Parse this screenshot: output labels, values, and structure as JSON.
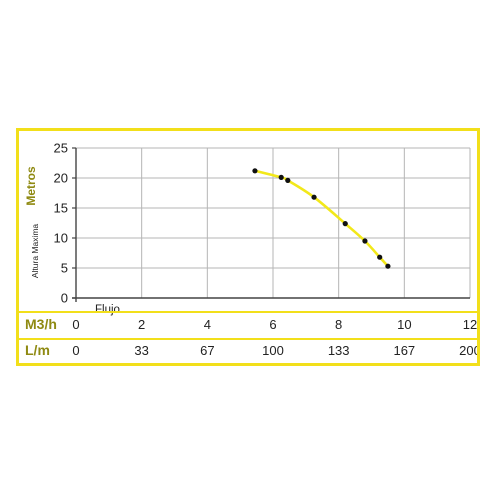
{
  "chart_data": {
    "type": "scatter",
    "y_title": "Metros",
    "y_subtitle": "Altura Maxima",
    "x_label": "Flujo",
    "ylim": [
      0,
      25
    ],
    "yticks": [
      0,
      5,
      10,
      15,
      20,
      25
    ],
    "xlim": [
      0,
      12
    ],
    "xticks": [
      0,
      2,
      4,
      6,
      8,
      10,
      12
    ],
    "grid": true,
    "axes": [
      {
        "unit": "M3/h",
        "ticks": [
          "0",
          "2",
          "4",
          "6",
          "8",
          "10",
          "12"
        ]
      },
      {
        "unit": "L/m",
        "ticks": [
          "0",
          "33",
          "67",
          "100",
          "133",
          "167",
          "200"
        ]
      }
    ],
    "series": [
      {
        "x": [
          5.45,
          6.25,
          6.45,
          7.25,
          8.2,
          8.8,
          9.25,
          9.5
        ],
        "y": [
          21.2,
          20.1,
          19.6,
          16.8,
          12.4,
          9.5,
          6.8,
          5.3
        ]
      }
    ],
    "colors": {
      "curve": "#f2e81a",
      "points": "#111111",
      "frame": "#f2df1a",
      "unit_text": "#8f8a12",
      "axes": "#444444",
      "grid": "#b5b5b5"
    }
  }
}
